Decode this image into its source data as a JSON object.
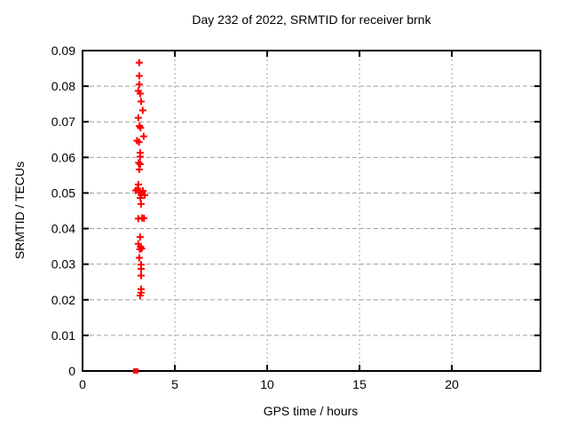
{
  "chart_data": {
    "type": "scatter",
    "title": "Day 232 of 2022, SRMTID for receiver brnk",
    "xlabel": "GPS time / hours",
    "ylabel": "SRMTID / TECUs",
    "xlim": [
      0,
      24.8
    ],
    "ylim": [
      0,
      0.09
    ],
    "grid": true,
    "legend": "none",
    "x_ticks": {
      "values": [
        0,
        5,
        10,
        15,
        20
      ],
      "labels": [
        "0",
        "5",
        "10",
        "15",
        "20"
      ]
    },
    "y_ticks": {
      "values": [
        0,
        0.01,
        0.02,
        0.03,
        0.04,
        0.05,
        0.06,
        0.07,
        0.08,
        0.09
      ],
      "labels": [
        "0",
        "0.01",
        "0.02",
        "0.03",
        "0.04",
        "0.05",
        "0.06",
        "0.07",
        "0.08",
        "0.09"
      ]
    },
    "colors": {
      "marker": "#ff0000",
      "axis": "#000000",
      "grid": "#a0a0a0",
      "text": "#000000",
      "background": "#ffffff"
    },
    "series": [
      {
        "name": "SRMTID",
        "marker": "plus",
        "color": "#ff0000",
        "points": [
          [
            3.07,
            0.0866
          ],
          [
            3.07,
            0.0829
          ],
          [
            3.07,
            0.0805
          ],
          [
            3.02,
            0.0787
          ],
          [
            3.12,
            0.0779
          ],
          [
            3.17,
            0.0757
          ],
          [
            3.26,
            0.0732
          ],
          [
            3.02,
            0.0711
          ],
          [
            3.09,
            0.0688
          ],
          [
            3.14,
            0.0683
          ],
          [
            3.31,
            0.0659
          ],
          [
            2.95,
            0.0647
          ],
          [
            3.06,
            0.0643
          ],
          [
            3.12,
            0.0613
          ],
          [
            3.12,
            0.0602
          ],
          [
            3.04,
            0.0585
          ],
          [
            3.12,
            0.0581
          ],
          [
            3.07,
            0.0566
          ],
          [
            3.02,
            0.0524
          ],
          [
            2.88,
            0.0507
          ],
          [
            2.99,
            0.0512
          ],
          [
            3.08,
            0.0501
          ],
          [
            3.18,
            0.0495
          ],
          [
            3.27,
            0.0506
          ],
          [
            3.37,
            0.0494
          ],
          [
            3.13,
            0.0486
          ],
          [
            3.17,
            0.0469
          ],
          [
            3.02,
            0.0428
          ],
          [
            3.23,
            0.043
          ],
          [
            3.33,
            0.0429
          ],
          [
            3.12,
            0.0376
          ],
          [
            3.02,
            0.0357
          ],
          [
            3.14,
            0.0349
          ],
          [
            3.2,
            0.0344
          ],
          [
            3.1,
            0.0342
          ],
          [
            3.07,
            0.0318
          ],
          [
            3.17,
            0.0299
          ],
          [
            3.17,
            0.0287
          ],
          [
            3.17,
            0.0268
          ],
          [
            3.17,
            0.023
          ],
          [
            3.17,
            0.022
          ],
          [
            3.12,
            0.0212
          ]
        ]
      },
      {
        "name": "zero-marker",
        "marker": "filled-square",
        "color": "#ff0000",
        "points": [
          [
            2.88,
            0.0
          ]
        ]
      }
    ]
  }
}
